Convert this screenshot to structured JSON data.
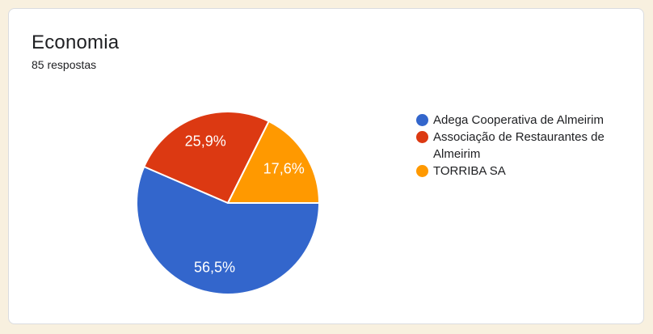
{
  "theme": {
    "page_background": "#F8F0DF",
    "card_background": "#FFFFFF",
    "card_border": "#DADCE0",
    "text_color": "#202124",
    "slice_label_color": "#FFFFFF"
  },
  "card": {
    "title": "Economia",
    "response_count": "85 respostas"
  },
  "chart_data": {
    "type": "pie",
    "title": "Economia",
    "categories": [
      "Adega Cooperativa de Almeirim",
      "Associação de Restaurantes de Almeirim",
      "TORRIBA SA"
    ],
    "values": [
      56.5,
      25.9,
      17.6
    ],
    "value_labels": [
      "56,5%",
      "25,9%",
      "17,6%"
    ],
    "colors": [
      "#3366CC",
      "#DC3912",
      "#FF9900"
    ],
    "start_angle_deg": 0,
    "direction": "clockwise",
    "legend_position": "right",
    "slice_border_color": "#FFFFFF"
  }
}
